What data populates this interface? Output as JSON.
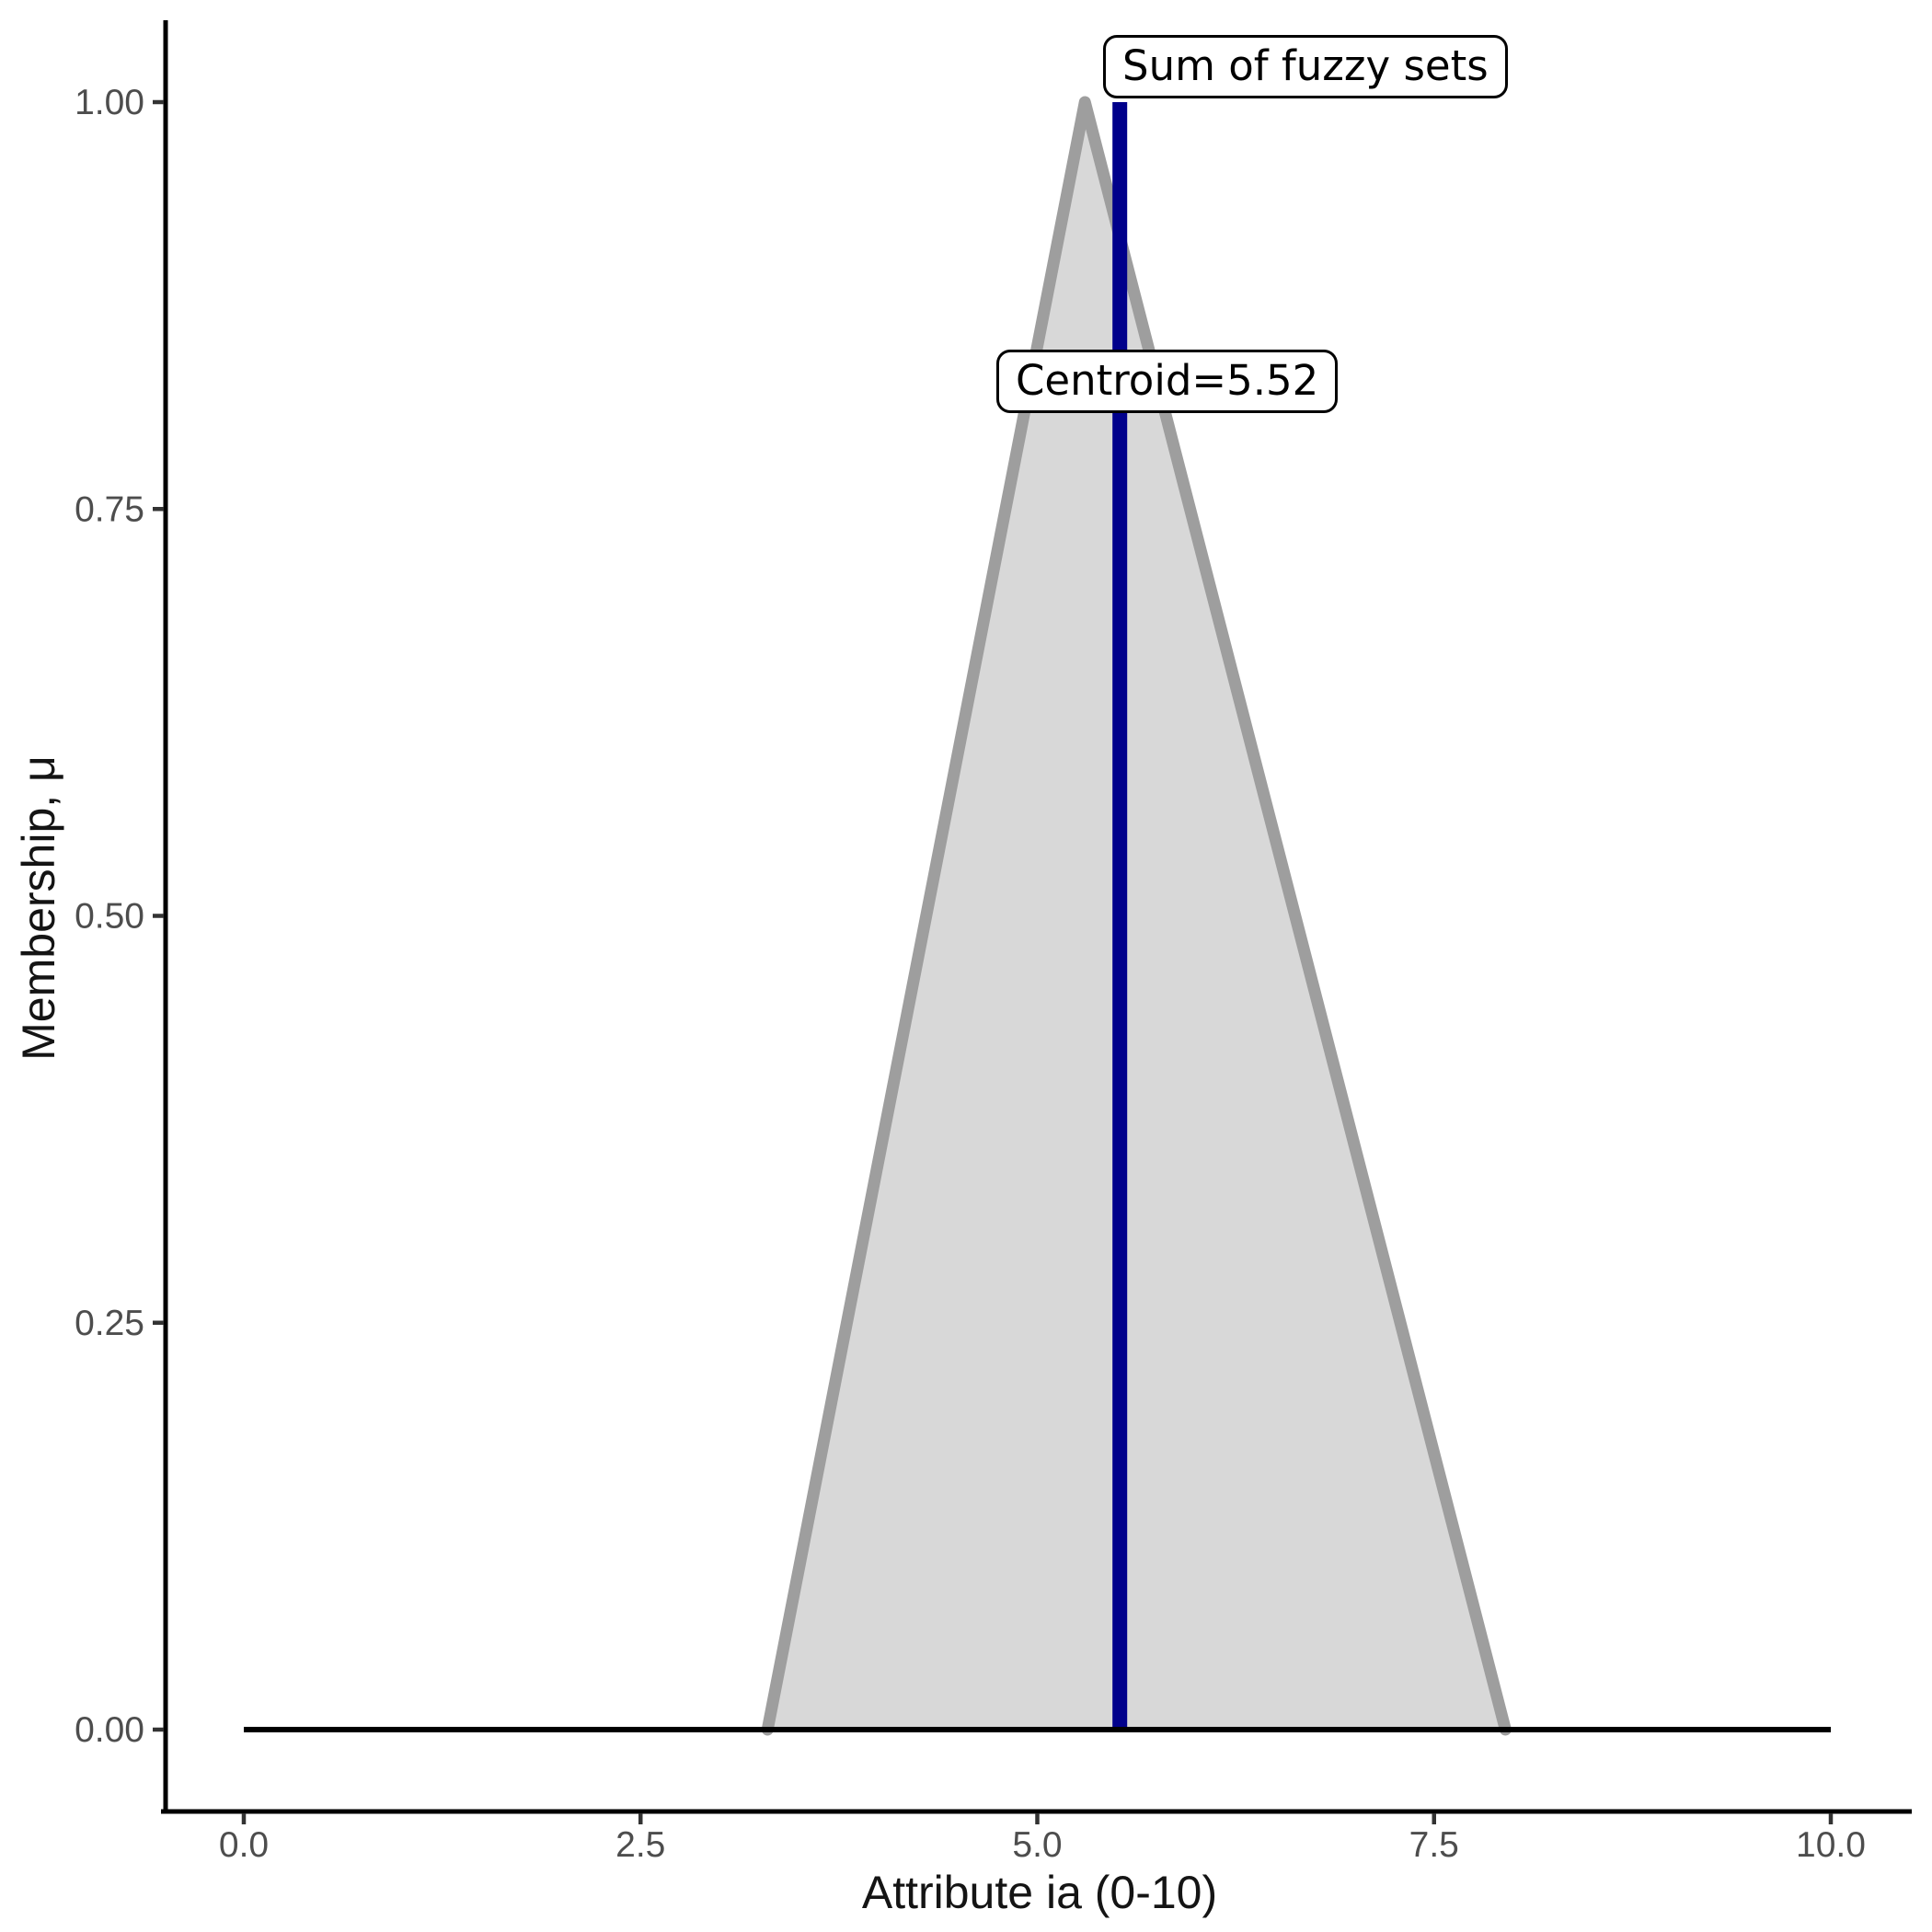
{
  "chart_data": {
    "type": "area",
    "title": "",
    "xlabel": "Attribute ia (0-10)",
    "ylabel": "Membership, μ",
    "xlim": [
      0,
      10
    ],
    "ylim": [
      0,
      1
    ],
    "grid": false,
    "legend": "none",
    "x_ticks": [
      {
        "value": 0,
        "label": "0.0"
      },
      {
        "value": 2.5,
        "label": "2.5"
      },
      {
        "value": 5,
        "label": "5.0"
      },
      {
        "value": 7.5,
        "label": "7.5"
      },
      {
        "value": 10,
        "label": "10.0"
      }
    ],
    "y_ticks": [
      {
        "value": 0,
        "label": "0.00"
      },
      {
        "value": 0.25,
        "label": "0.25"
      },
      {
        "value": 0.5,
        "label": "0.50"
      },
      {
        "value": 0.75,
        "label": "0.75"
      },
      {
        "value": 1,
        "label": "1.00"
      }
    ],
    "series": [
      {
        "name": "Sum of fuzzy sets",
        "shape": "filled-polygon",
        "points": [
          [
            3.3,
            0
          ],
          [
            5.3,
            1
          ],
          [
            7.95,
            0
          ]
        ],
        "fill_color": "#d8d8d8",
        "stroke_color": "#9e9e9e"
      }
    ],
    "baseline": {
      "y": 0,
      "x_from": 0,
      "x_to": 10,
      "color": "#000000"
    },
    "centroid": {
      "value": 5.52,
      "color": "#00008b"
    },
    "annotations": [
      {
        "text": "Sum of fuzzy sets"
      },
      {
        "text": "Centroid=5.52"
      }
    ]
  }
}
